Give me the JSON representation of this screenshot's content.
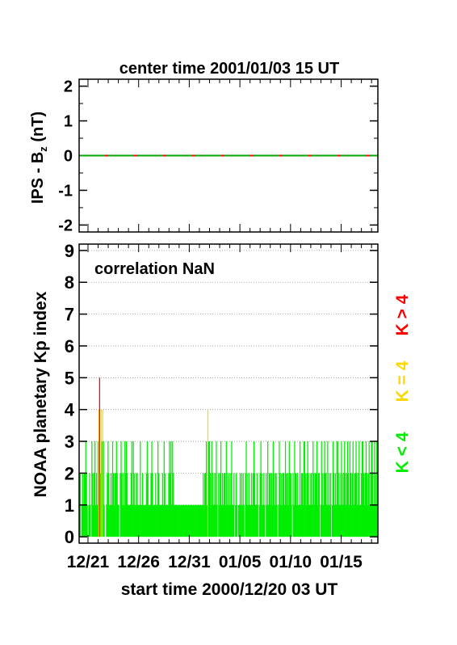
{
  "chart_data": [
    {
      "type": "line",
      "title": "center time 2001/01/03 15 UT",
      "ylabel_main": "IPS - B",
      "ylabel_sub": "z",
      "ylabel_unit": " (nT)",
      "ylim": [
        -2.2,
        2.2
      ],
      "y_ticks": [
        "2",
        "1",
        "0",
        "-1",
        "-2"
      ],
      "y_tick_values": [
        2,
        1,
        0,
        -1,
        -2
      ],
      "x_range_days": [
        0,
        29.5
      ],
      "series": [
        {
          "values_y": 0,
          "x_start": 0,
          "x_end": 29.5,
          "colors": [
            "#00aa00",
            "#ff0000"
          ]
        }
      ]
    },
    {
      "type": "bar",
      "annotation": "correlation NaN",
      "ylabel": "NOAA planetary Kp index",
      "xlabel": "start time 2000/12/20 03 UT",
      "ylim": [
        -0.2,
        9.2
      ],
      "y_ticks": [
        "9",
        "8",
        "7",
        "6",
        "5",
        "4",
        "3",
        "2",
        "1",
        "0"
      ],
      "y_tick_values": [
        9,
        8,
        7,
        6,
        5,
        4,
        3,
        2,
        1,
        0
      ],
      "grid": true,
      "x_tick_labels": [
        "12/21",
        "12/26",
        "12/31",
        "01/05",
        "01/10",
        "01/15"
      ],
      "x_tick_days": [
        0.875,
        5.875,
        10.875,
        15.875,
        20.875,
        25.875
      ],
      "legend": [
        {
          "label": "K > 4",
          "color": "#ff0000"
        },
        {
          "label": "K = 4",
          "color": "#ffd700"
        },
        {
          "label": "K < 4",
          "color": "#00ee00"
        }
      ],
      "kp_values": [
        2,
        2,
        0,
        1,
        2,
        1,
        2,
        2,
        3,
        2,
        1,
        0,
        1,
        2,
        1,
        0,
        3,
        2,
        1,
        2,
        3,
        1,
        2,
        1,
        3,
        4,
        5,
        2,
        4,
        3,
        4,
        3,
        1,
        0,
        0,
        1,
        2,
        3,
        2,
        1,
        1,
        2,
        1,
        3,
        2,
        1,
        2,
        2,
        3,
        2,
        1,
        1,
        0,
        2,
        3,
        2,
        1,
        2,
        1,
        3,
        2,
        3,
        2,
        1,
        1,
        1,
        1,
        2,
        3,
        1,
        3,
        2,
        1,
        1,
        2,
        2,
        1,
        1,
        1,
        3,
        1,
        1,
        2,
        1,
        1,
        1,
        1,
        2,
        3,
        2,
        1,
        1,
        1,
        2,
        3,
        2,
        1,
        1,
        1,
        2,
        1,
        1,
        3,
        2,
        1,
        1,
        1,
        1,
        2,
        1,
        3,
        2,
        1,
        1,
        1,
        1,
        2,
        3,
        2,
        3,
        1,
        3,
        2,
        1,
        1,
        1,
        1,
        1,
        1,
        1,
        1,
        1,
        1,
        1,
        1,
        1,
        1,
        1,
        1,
        1,
        1,
        1,
        1,
        1,
        1,
        1,
        1,
        1,
        1,
        1,
        1,
        1,
        1,
        1,
        1,
        1,
        1,
        1,
        1,
        1,
        1,
        2,
        1,
        2,
        2,
        3,
        1,
        4,
        3,
        3,
        2,
        1,
        3,
        2,
        1,
        2,
        1,
        2,
        3,
        1,
        0,
        2,
        1,
        2,
        3,
        1,
        2,
        1,
        2,
        2,
        1,
        3,
        1,
        2,
        1,
        2,
        1,
        2,
        3,
        1,
        1,
        2,
        0,
        1,
        2,
        1,
        0,
        1,
        1,
        2,
        1,
        2,
        1,
        2,
        1,
        0,
        2,
        3,
        1,
        2,
        1,
        2,
        1,
        1,
        2,
        1,
        2,
        3,
        2,
        1,
        1,
        2,
        1,
        0,
        1,
        2,
        3,
        2,
        1,
        1,
        2,
        1,
        0,
        2,
        1,
        3,
        1,
        2,
        2,
        1,
        2,
        1,
        3,
        2,
        1,
        2,
        2,
        1,
        0,
        1,
        3,
        2,
        1,
        2,
        1,
        2,
        2,
        1,
        3,
        2,
        1,
        2,
        1,
        3,
        2,
        2,
        1,
        0,
        2,
        1,
        3,
        2,
        2,
        1,
        2,
        1,
        1,
        3,
        1,
        2,
        2,
        1,
        3,
        3,
        2,
        1,
        2,
        3,
        2,
        1,
        1,
        2,
        2,
        1,
        3,
        2,
        1,
        2,
        2,
        3,
        1,
        2,
        2,
        0,
        1,
        3,
        2,
        1,
        2,
        3,
        2,
        2,
        1,
        3,
        1,
        2,
        1,
        2,
        0,
        1,
        3,
        2,
        1,
        2,
        1,
        3,
        3,
        2,
        1,
        2,
        1,
        3,
        2,
        1,
        2,
        3,
        2,
        1,
        2,
        3,
        2,
        1,
        3,
        2,
        1,
        2,
        3,
        1,
        2,
        2,
        3,
        2,
        1,
        2,
        3,
        1,
        1,
        2,
        3,
        3,
        2,
        1,
        2,
        3,
        2,
        1,
        2,
        3,
        1,
        2,
        3,
        3,
        2,
        1,
        3,
        2,
        1,
        3,
        3
      ]
    }
  ]
}
